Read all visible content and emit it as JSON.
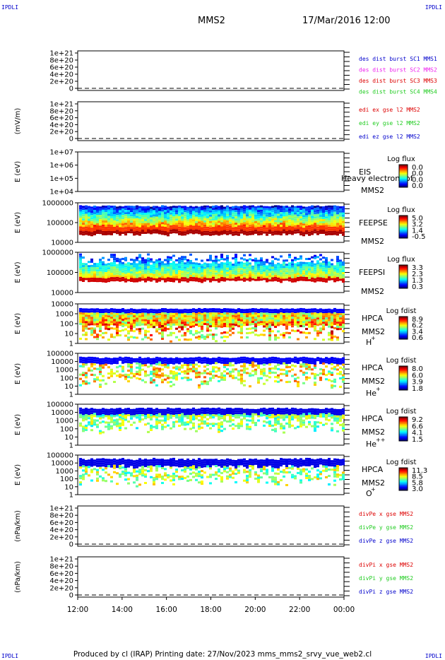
{
  "corners": {
    "tl": "IPDLI",
    "tr": "IPDLI",
    "bl": "IPDLI",
    "br": "IPDLI"
  },
  "header": {
    "spacecraft": "MMS2",
    "datetime": "17/Mar/2016 12:00"
  },
  "footer": "Produced by cl (IRAP)   Printing date: 27/Nov/2023   mms_mms2_srvy_vue_web2.cl",
  "colors": {
    "red": "#dd0000",
    "magenta": "#ee22ee",
    "green": "#22cc22",
    "blue": "#0000cc"
  },
  "chart_data": [
    {
      "type": "line",
      "panel": "des-dist",
      "ylabel": "",
      "yticks": [
        "1e+21",
        "8e+20",
        "6e+20",
        "4e+20",
        "2e+20",
        "0"
      ],
      "legend": [
        {
          "name": "des dist burst SC1 MMS1",
          "color": "#0000cc"
        },
        {
          "name": "des dist burst SC2 MMS2",
          "color": "#ee22ee"
        },
        {
          "name": "des dist burst SC3 MMS3",
          "color": "#dd0000"
        },
        {
          "name": "des dist burst SC4 MMS4",
          "color": "#22cc22"
        }
      ]
    },
    {
      "type": "line",
      "panel": "edi",
      "ylabel": "(mV/m)",
      "yticks": [
        "1e+21",
        "8e+20",
        "6e+20",
        "4e+20",
        "2e+20",
        "0"
      ],
      "legend": [
        {
          "name": "edi ex gse l2 MMS2",
          "color": "#dd0000"
        },
        {
          "name": "edi ey gse l2 MMS2",
          "color": "#22cc22"
        },
        {
          "name": "edi ez gse l2 MMS2",
          "color": "#0000cc"
        }
      ]
    },
    {
      "type": "heatmap",
      "panel": "eis",
      "ylabel": "E (eV)",
      "yticks": [
        "1e+07",
        "1e+06",
        "1e+05",
        "1e+04"
      ],
      "labels": [
        "EIS",
        "MMS2"
      ],
      "overlay": "Heavy electron tof",
      "cbar_title": "Log flux",
      "cbar_ticks": [
        "0.0",
        "0.0",
        "0.0",
        "0.0"
      ]
    },
    {
      "type": "heatmap",
      "panel": "feeps-e",
      "ylabel": "E (eV)",
      "yticks": [
        "1000000",
        "100000",
        "10000"
      ],
      "labels": [
        "FEEPSE",
        "MMS2"
      ],
      "cbar_title": "Log flux",
      "cbar_ticks": [
        "5.0",
        "3.2",
        "1.4",
        "-0.5"
      ]
    },
    {
      "type": "heatmap",
      "panel": "feeps-i",
      "ylabel": "E (eV)",
      "yticks": [
        "1000000",
        "100000",
        "10000"
      ],
      "labels": [
        "FEEPSI",
        "MMS2"
      ],
      "cbar_title": "Log flux",
      "cbar_ticks": [
        "3.3",
        "2.3",
        "1.3",
        "0.3"
      ]
    },
    {
      "type": "heatmap",
      "panel": "hpca-h",
      "ylabel": "E (eV)",
      "yticks": [
        "10000",
        "1000",
        "100",
        "10",
        "1"
      ],
      "labels": [
        "HPCA",
        "MMS2",
        "H",
        "+"
      ],
      "cbar_title": "Log fdist",
      "cbar_ticks": [
        "8.9",
        "6.2",
        "3.4",
        "0.6"
      ]
    },
    {
      "type": "heatmap",
      "panel": "hpca-he",
      "ylabel": "E (eV)",
      "yticks": [
        "100000",
        "10000",
        "1000",
        "100",
        "10",
        "1"
      ],
      "labels": [
        "HPCA",
        "MMS2",
        "He",
        "+"
      ],
      "cbar_title": "Log fdist",
      "cbar_ticks": [
        "8.0",
        "6.0",
        "3.9",
        "1.8"
      ]
    },
    {
      "type": "heatmap",
      "panel": "hpca-hepp",
      "ylabel": "E (eV)",
      "yticks": [
        "100000",
        "10000",
        "1000",
        "100",
        "10",
        "1"
      ],
      "labels": [
        "HPCA",
        "MMS2",
        "He",
        "++"
      ],
      "cbar_title": "Log fdist",
      "cbar_ticks": [
        "9.2",
        "6.6",
        "4.1",
        "1.5"
      ]
    },
    {
      "type": "heatmap",
      "panel": "hpca-o",
      "ylabel": "E (eV)",
      "yticks": [
        "100000",
        "10000",
        "1000",
        "100",
        "10",
        "1"
      ],
      "labels": [
        "HPCA",
        "MMS2",
        "O",
        "+"
      ],
      "cbar_title": "Log fdist",
      "cbar_ticks": [
        "11.3",
        "8.5",
        "5.8",
        "3.0"
      ]
    },
    {
      "type": "line",
      "panel": "divpe",
      "ylabel": "(nPa/km)",
      "yticks": [
        "1e+21",
        "8e+20",
        "6e+20",
        "4e+20",
        "2e+20",
        "0"
      ],
      "legend": [
        {
          "name": "divPe x gse MMS2",
          "color": "#dd0000"
        },
        {
          "name": "divPe y gse MMS2",
          "color": "#22cc22"
        },
        {
          "name": "divPe z gse MMS2",
          "color": "#0000cc"
        }
      ]
    },
    {
      "type": "line",
      "panel": "divpi",
      "ylabel": "(nPa/km)",
      "yticks": [
        "1e+21",
        "8e+20",
        "6e+20",
        "4e+20",
        "2e+20",
        "0"
      ],
      "legend": [
        {
          "name": "divPi x gse MMS2",
          "color": "#dd0000"
        },
        {
          "name": "divPi y gse MMS2",
          "color": "#22cc22"
        },
        {
          "name": "divPi z gse MMS2",
          "color": "#0000cc"
        }
      ]
    }
  ],
  "xaxis": {
    "ticks": [
      "12:00",
      "14:00",
      "16:00",
      "18:00",
      "20:00",
      "22:00",
      "00:00"
    ]
  }
}
